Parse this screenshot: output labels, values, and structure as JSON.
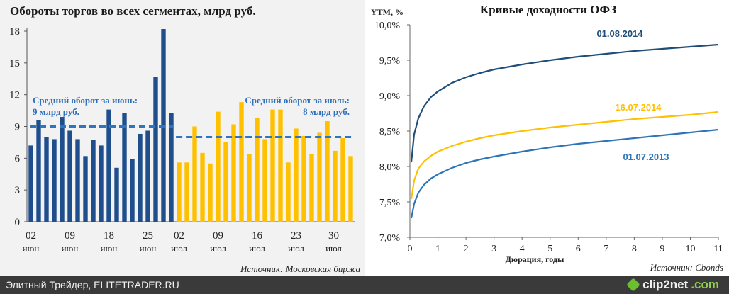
{
  "chart_data": [
    {
      "type": "bar",
      "title": "Обороты торгов во всех сегментах, млрд руб.",
      "ylim": [
        0,
        18
      ],
      "yticks": [
        "0",
        "3",
        "6",
        "9",
        "12",
        "15",
        "18"
      ],
      "xtick_days": [
        "02",
        "09",
        "18",
        "25",
        "02",
        "09",
        "16",
        "23",
        "30"
      ],
      "xtick_months": [
        "июн",
        "июн",
        "июн",
        "июн",
        "июл",
        "июл",
        "июл",
        "июл",
        "июл"
      ],
      "series": [
        {
          "name": "июнь",
          "color": "#1f4e8c",
          "values": [
            7.2,
            9.6,
            8.0,
            7.8,
            9.9,
            8.6,
            7.8,
            6.2,
            7.7,
            7.2,
            10.6,
            5.1,
            10.3,
            5.9,
            8.3,
            8.6,
            13.7,
            18.2,
            10.3
          ]
        },
        {
          "name": "июль",
          "color": "#ffc000",
          "values": [
            5.6,
            5.6,
            9.0,
            6.5,
            5.5,
            10.4,
            7.5,
            9.2,
            11.3,
            6.4,
            9.8,
            7.8,
            10.6,
            10.6,
            5.6,
            8.8,
            8.1,
            6.4,
            8.4,
            9.5,
            6.7,
            7.9,
            6.2
          ]
        }
      ],
      "averages": [
        {
          "label_line1": "Средний оборот за июнь:",
          "label_line2": "9 млрд руб.",
          "value": 9
        },
        {
          "label_line1": "Средний оборот за июль:",
          "label_line2": "8 млрд руб.",
          "value": 8
        }
      ],
      "source": "Источник: Московская биржа",
      "avg_line_color": "#2e75c0"
    },
    {
      "type": "line",
      "title": "Кривые доходности ОФЗ",
      "ylabel": "YTM, %",
      "xlabel": "Дюрация, годы",
      "xlim": [
        0,
        11
      ],
      "ylim": [
        7.0,
        10.0
      ],
      "xticks": [
        "0",
        "1",
        "2",
        "3",
        "4",
        "5",
        "6",
        "7",
        "8",
        "9",
        "10",
        "11"
      ],
      "yticks": [
        "7,0%",
        "7,5%",
        "8,0%",
        "8,5%",
        "9,0%",
        "9,5%",
        "10,0%"
      ],
      "x": [
        0.05,
        0.15,
        0.3,
        0.5,
        0.75,
        1,
        1.5,
        2,
        2.5,
        3,
        4,
        5,
        6,
        7,
        8,
        9,
        10,
        11
      ],
      "series": [
        {
          "name": "01.08.2014",
          "color": "#1f4e79",
          "values": [
            8.06,
            8.45,
            8.68,
            8.85,
            8.98,
            9.06,
            9.18,
            9.26,
            9.32,
            9.37,
            9.44,
            9.5,
            9.55,
            9.59,
            9.63,
            9.66,
            9.69,
            9.72
          ]
        },
        {
          "name": "16.07.2014",
          "color": "#ffc000",
          "values": [
            7.54,
            7.8,
            7.97,
            8.07,
            8.15,
            8.21,
            8.29,
            8.35,
            8.4,
            8.44,
            8.5,
            8.55,
            8.59,
            8.63,
            8.67,
            8.7,
            8.73,
            8.77
          ]
        },
        {
          "name": "01.07.2013",
          "color": "#2e75b6",
          "values": [
            7.27,
            7.47,
            7.63,
            7.74,
            7.83,
            7.89,
            7.98,
            8.05,
            8.1,
            8.14,
            8.21,
            8.27,
            8.32,
            8.36,
            8.4,
            8.44,
            8.48,
            8.52
          ]
        }
      ],
      "source": "Источник: Cbonds"
    }
  ],
  "footer": {
    "text": "Элитный Трейдер, ELITETRADER.RU",
    "logo_main": "clip2net",
    "logo_suffix": ".com"
  }
}
